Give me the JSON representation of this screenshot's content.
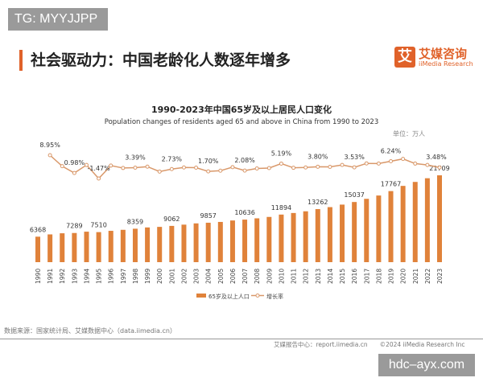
{
  "watermark_top": "TG: MYYJJPP",
  "watermark_bottom": "hdc–ayx.com",
  "header": {
    "title": "社会驱动力：中国老龄化人数逐年增多",
    "logo_cn": "艾媒咨询",
    "logo_en": "iiMedia Research",
    "logo_mark": "艾"
  },
  "chart_data": {
    "type": "bar+line",
    "title": "1990-2023年中国65岁及以上居民人口变化",
    "subtitle": "Population changes of residents aged 65 and above in China from 1990 to 2023",
    "unit": "单位：万人",
    "categories": [
      "1990",
      "1991",
      "1992",
      "1993",
      "1994",
      "1995",
      "1996",
      "1997",
      "1998",
      "1999",
      "2000",
      "2001",
      "2002",
      "2003",
      "2004",
      "2005",
      "2006",
      "2007",
      "2008",
      "2009",
      "2010",
      "2011",
      "2012",
      "2013",
      "2014",
      "2015",
      "2016",
      "2017",
      "2018",
      "2019",
      "2020",
      "2021",
      "2022",
      "2023"
    ],
    "series": [
      {
        "name": "65岁及以上人口",
        "type": "bar",
        "color": "#e0823a",
        "values": [
          6368,
          6938,
          7218,
          7289,
          7622,
          7510,
          7833,
          8085,
          8359,
          8679,
          8821,
          9062,
          9377,
          9692,
          9857,
          10055,
          10419,
          10636,
          10956,
          11307,
          11894,
          12288,
          12714,
          13262,
          13755,
          14386,
          15037,
          15831,
          16658,
          17767,
          19064,
          20056,
          20978,
          21709
        ],
        "labels": {
          "1990": "6368",
          "1993": "7289",
          "1995": "7510",
          "1998": "8359",
          "2001": "9062",
          "2004": "9857",
          "2007": "10636",
          "2010": "11894",
          "2013": "13262",
          "2016": "15037",
          "2019": "17767",
          "2023": "21709"
        }
      },
      {
        "name": "增长率",
        "type": "line",
        "color": "#d9986a",
        "values": [
          null,
          8.95,
          4.04,
          0.98,
          4.57,
          -1.47,
          4.3,
          3.22,
          3.39,
          3.83,
          1.64,
          2.73,
          3.48,
          3.36,
          1.7,
          2.01,
          3.62,
          2.08,
          3.01,
          3.2,
          5.19,
          3.31,
          3.47,
          3.8,
          3.72,
          4.59,
          3.53,
          5.28,
          5.22,
          6.24,
          7.3,
          5.2,
          4.6,
          3.48
        ],
        "labels": {
          "1991": "8.95%",
          "1993": "0.98%",
          "1995": "-1.47%",
          "1998": "3.39%",
          "2001": "2.73%",
          "2004": "1.70%",
          "2007": "2.08%",
          "2010": "5.19%",
          "2013": "3.80%",
          "2016": "3.53%",
          "2019": "6.24%",
          "2023": "3.48%"
        }
      }
    ],
    "legend": "bottom-center",
    "grid": false
  },
  "source": "数据来源：国家统计局、艾媒数据中心（data.iimedia.cn）",
  "footer": "艾媒报告中心：report.iimedia.cn　　©2024  iiMedia Research Inc"
}
